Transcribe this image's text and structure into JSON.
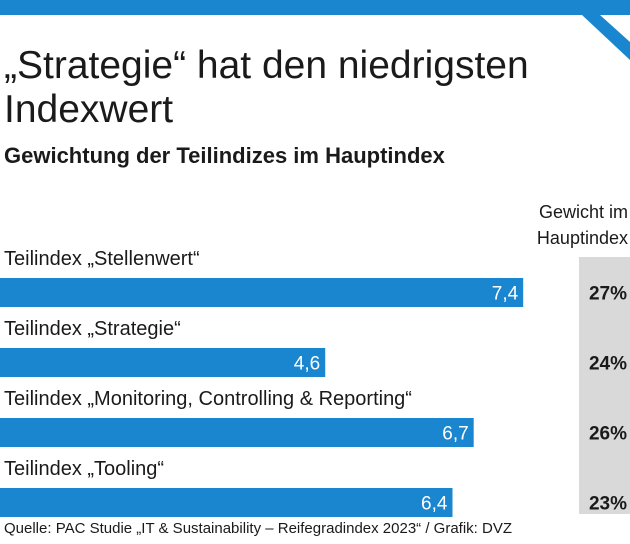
{
  "header": {
    "title": "„Strategie“ hat den niedrigsten Indexwert",
    "subtitle": "Gewichtung der Teilindizes im Hauptindex"
  },
  "weight_column": {
    "header": "Gewicht im Hauptindex"
  },
  "source": "Quelle: PAC Studie „IT & Sustainability – Reifegradindex 2023“ / Grafik: DVZ",
  "colors": {
    "bar": "#1a86d0",
    "weight_background": "#d9d9d9",
    "top_bar": "#1a86d0"
  },
  "chart_data": {
    "type": "bar",
    "orientation": "horizontal",
    "categories": [
      "Teilindex „Stellenwert“",
      "Teilindex „Strategie“",
      "Teilindex „Monitoring, Controlling & Reporting“",
      "Teilindex „Tooling“"
    ],
    "values": [
      7.4,
      4.6,
      6.7,
      6.4
    ],
    "value_labels": [
      "7,4",
      "4,6",
      "6,7",
      "6,4"
    ],
    "weights": [
      "27%",
      "24%",
      "26%",
      "23%"
    ],
    "xlim": [
      0,
      10
    ],
    "grid": false,
    "legend": "none"
  }
}
